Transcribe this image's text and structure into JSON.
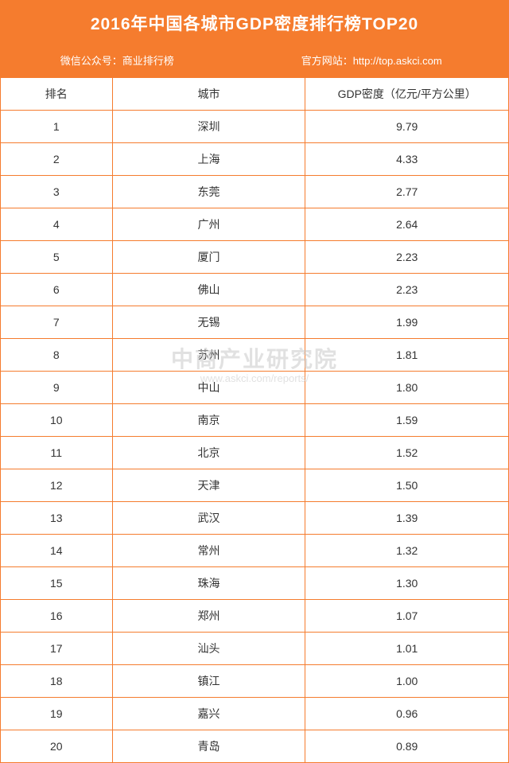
{
  "header": {
    "title": "2016年中国各城市GDP密度排行榜TOP20",
    "subtitle_left": "微信公众号：商业排行榜",
    "subtitle_right": "官方网站：http://top.askci.com"
  },
  "table": {
    "type": "table",
    "background_color": "#ffffff",
    "border_color": "#f57c2e",
    "header_bg": "#f57c2e",
    "header_text_color": "#ffffff",
    "text_color": "#333333",
    "font_size": 14,
    "columns": [
      {
        "key": "rank",
        "label": "排名",
        "width": "22%",
        "align": "center"
      },
      {
        "key": "city",
        "label": "城市",
        "width": "38%",
        "align": "center"
      },
      {
        "key": "density",
        "label": "GDP密度（亿元/平方公里）",
        "width": "40%",
        "align": "center"
      }
    ],
    "rows": [
      {
        "rank": "1",
        "city": "深圳",
        "density": "9.79"
      },
      {
        "rank": "2",
        "city": "上海",
        "density": "4.33"
      },
      {
        "rank": "3",
        "city": "东莞",
        "density": "2.77"
      },
      {
        "rank": "4",
        "city": "广州",
        "density": "2.64"
      },
      {
        "rank": "5",
        "city": "厦门",
        "density": "2.23"
      },
      {
        "rank": "6",
        "city": "佛山",
        "density": "2.23"
      },
      {
        "rank": "7",
        "city": "无锡",
        "density": "1.99"
      },
      {
        "rank": "8",
        "city": "苏州",
        "density": "1.81"
      },
      {
        "rank": "9",
        "city": "中山",
        "density": "1.80"
      },
      {
        "rank": "10",
        "city": "南京",
        "density": "1.59"
      },
      {
        "rank": "11",
        "city": "北京",
        "density": "1.52"
      },
      {
        "rank": "12",
        "city": "天津",
        "density": "1.50"
      },
      {
        "rank": "13",
        "city": "武汉",
        "density": "1.39"
      },
      {
        "rank": "14",
        "city": "常州",
        "density": "1.32"
      },
      {
        "rank": "15",
        "city": "珠海",
        "density": "1.30"
      },
      {
        "rank": "16",
        "city": "郑州",
        "density": "1.07"
      },
      {
        "rank": "17",
        "city": "汕头",
        "density": "1.01"
      },
      {
        "rank": "18",
        "city": "镇江",
        "density": "1.00"
      },
      {
        "rank": "19",
        "city": "嘉兴",
        "density": "0.96"
      },
      {
        "rank": "20",
        "city": "青岛",
        "density": "0.89"
      }
    ]
  },
  "watermark": {
    "main_text": "中商产业研究院",
    "sub_text": "www.askci.com/reports/",
    "color": "rgba(200,200,200,0.55)",
    "main_fontsize": 28,
    "sub_fontsize": 13
  },
  "theme": {
    "primary_color": "#f57c2e",
    "title_color": "#ffffff",
    "title_fontsize": 21
  }
}
